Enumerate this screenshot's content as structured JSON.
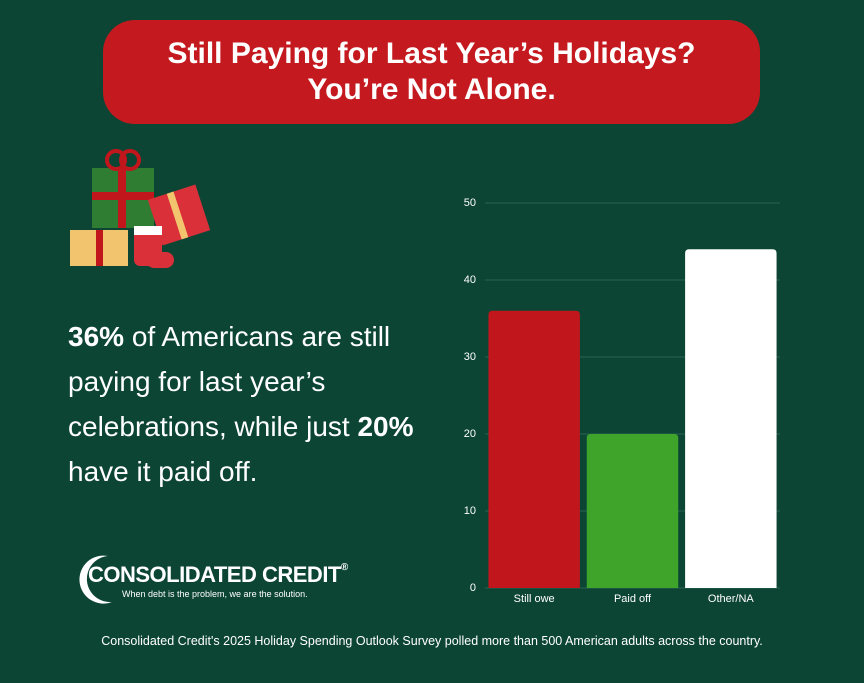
{
  "header": {
    "title_lines": [
      "Still Paying for Last Year’s Holidays?",
      "You’re Not Alone."
    ]
  },
  "statement": [
    "36%",
    " of Americans are still paying for last year’s celebrations, while just ",
    "20%",
    " have it paid off."
  ],
  "logo": {
    "name": "CONSOLIDATED CREDIT",
    "mark": "®",
    "tagline": "When debt is the problem, we are the solution."
  },
  "footnote": "Consolidated Credit's 2025 Holiday Spending Outlook Survey polled more than 500 American adults across the country.",
  "chart_data": {
    "type": "bar",
    "categories": [
      "Still owe",
      "Paid off",
      "Other/NA"
    ],
    "values": [
      36,
      20,
      44
    ],
    "colors": [
      "#c0161c",
      "#3fa52a",
      "#ffffff"
    ],
    "ylim": [
      0,
      50
    ],
    "yticks": [
      0,
      10,
      20,
      30,
      40,
      50
    ],
    "grid": true
  }
}
